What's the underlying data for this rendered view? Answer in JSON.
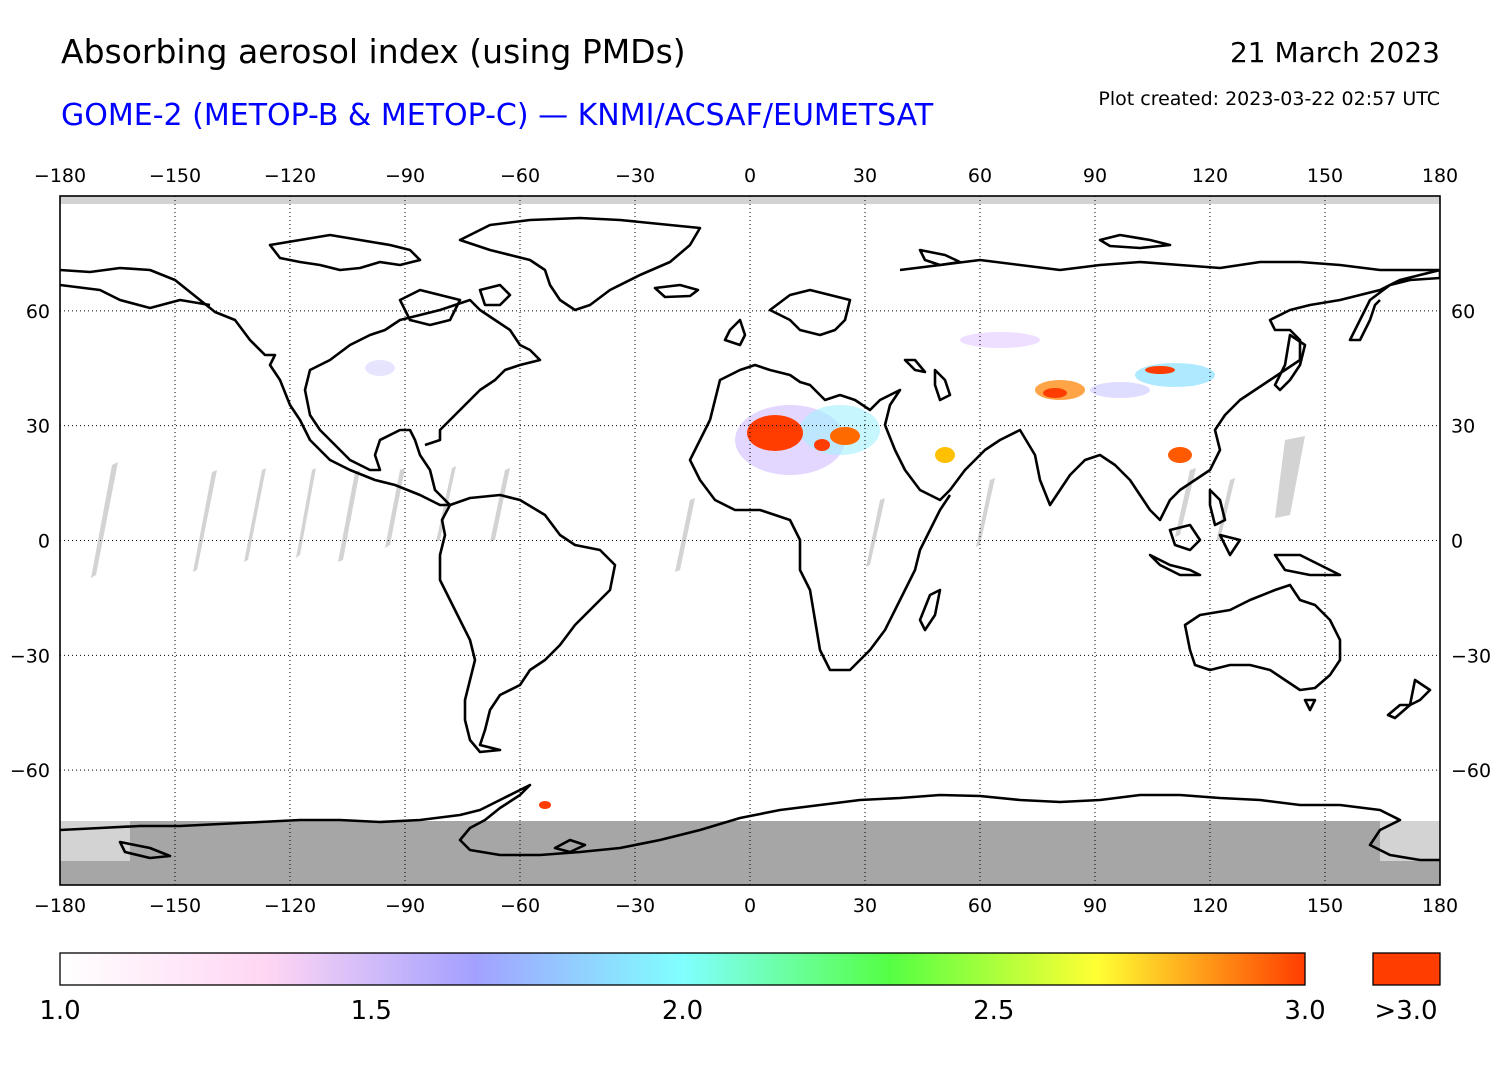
{
  "header": {
    "title": "Absorbing aerosol index (using PMDs)",
    "subtitle": "GOME-2 (METOP-B & METOP-C) — KNMI/ACSAF/EUMETSAT",
    "date": "21 March 2023",
    "created": "Plot created: 2023-03-22 02:57 UTC"
  },
  "map": {
    "projection": "equirectangular",
    "lon_range": [
      -180,
      180
    ],
    "lat_range": [
      -90,
      90
    ],
    "lon_ticks": [
      "−180",
      "−150",
      "−120",
      "−90",
      "−60",
      "−30",
      "0",
      "30",
      "60",
      "90",
      "120",
      "150",
      "180"
    ],
    "lat_ticks": [
      "60",
      "30",
      "0",
      "−30",
      "−60"
    ],
    "colors": {
      "land_outline": "#000000",
      "no_data": "#d3d3d3",
      "polar_night": "#a6a6a6",
      "high_aerosol": "#ff3d00"
    }
  },
  "colorbar": {
    "min": 1.0,
    "max": 3.0,
    "labels": [
      "1.0",
      "1.5",
      "2.0",
      "2.5",
      "3.0"
    ],
    "overflow_label": ">3.0",
    "stops": [
      "#ffffff",
      "#ffd6f3",
      "#a3a0ff",
      "#80ffff",
      "#55ff44",
      "#ffff33",
      "#ff3d00"
    ]
  }
}
